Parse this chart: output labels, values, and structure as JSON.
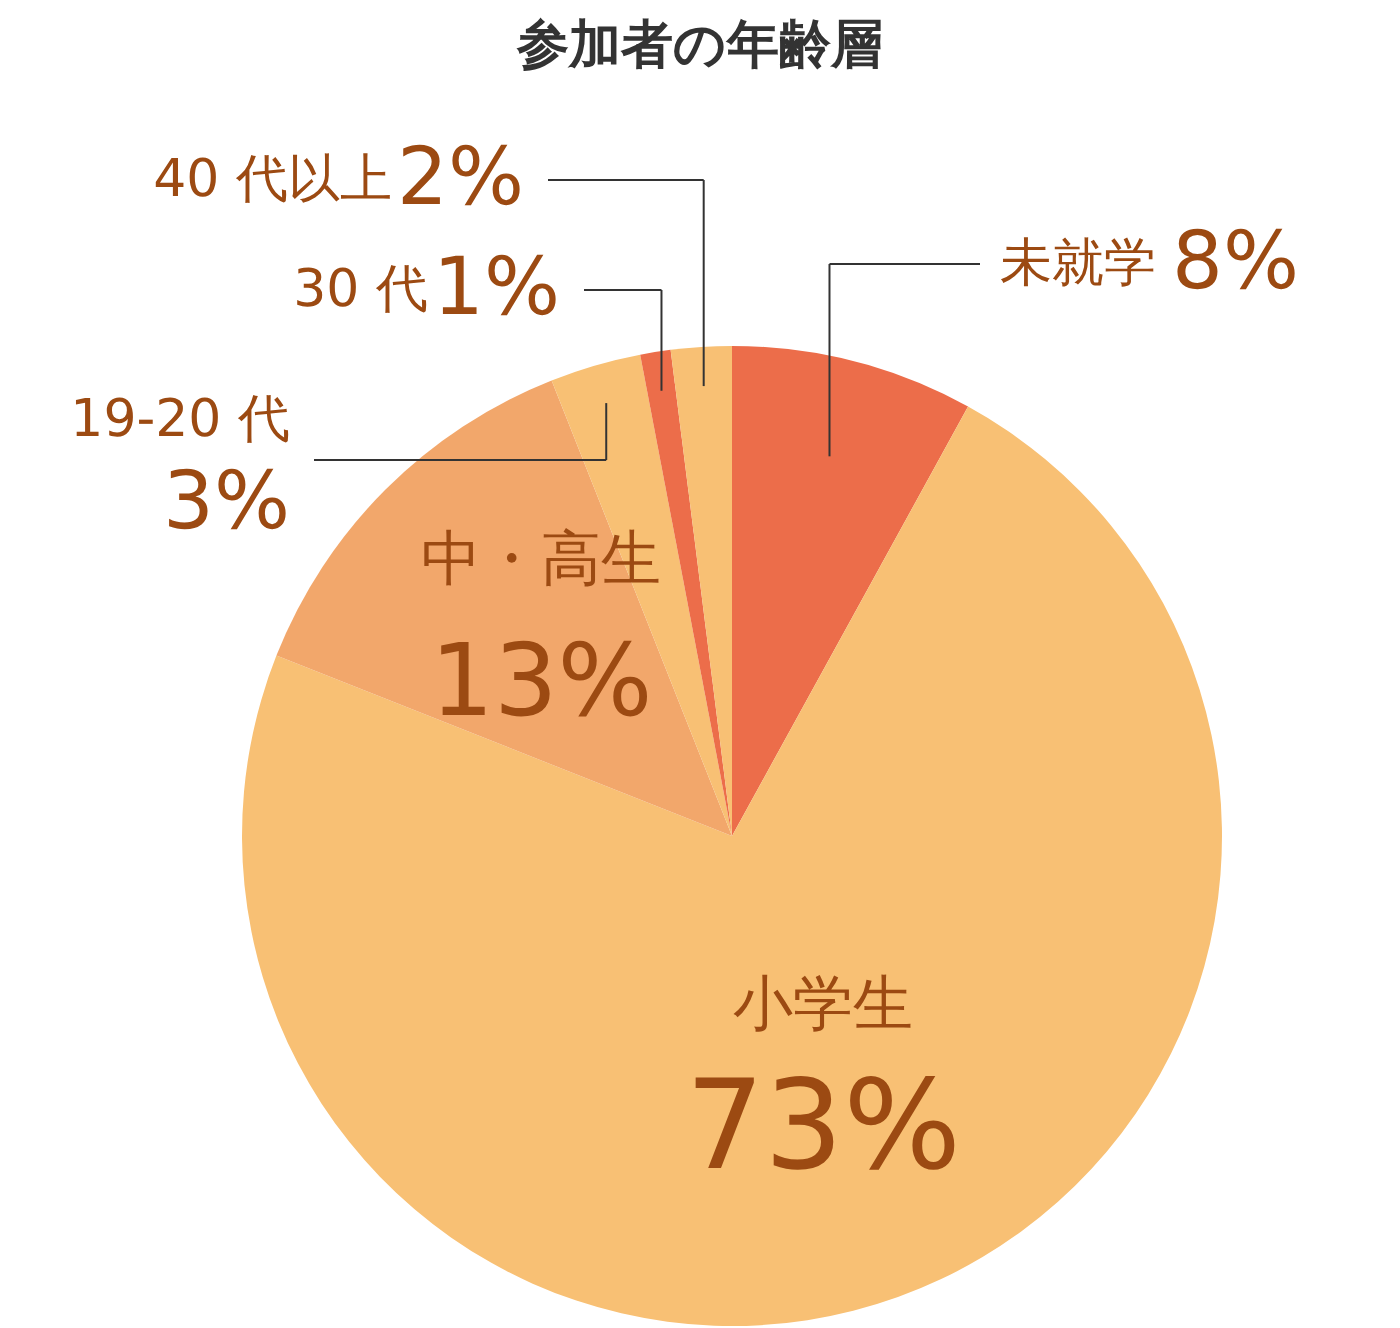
{
  "chart_data": {
    "type": "pie",
    "title": "参加者の年齢層",
    "categories": [
      "未就学",
      "小学生",
      "中・高生",
      "19-20 代",
      "30 代",
      "40 代以上"
    ],
    "values": [
      8,
      73,
      13,
      3,
      1,
      2
    ],
    "colors": [
      "#ec6d4a",
      "#f8c074",
      "#f2a76b",
      "#f8c074",
      "#ec6d4a",
      "#f8c074"
    ],
    "value_labels": [
      "8%",
      "73%",
      "13%",
      "3%",
      "1%",
      "2%"
    ]
  }
}
